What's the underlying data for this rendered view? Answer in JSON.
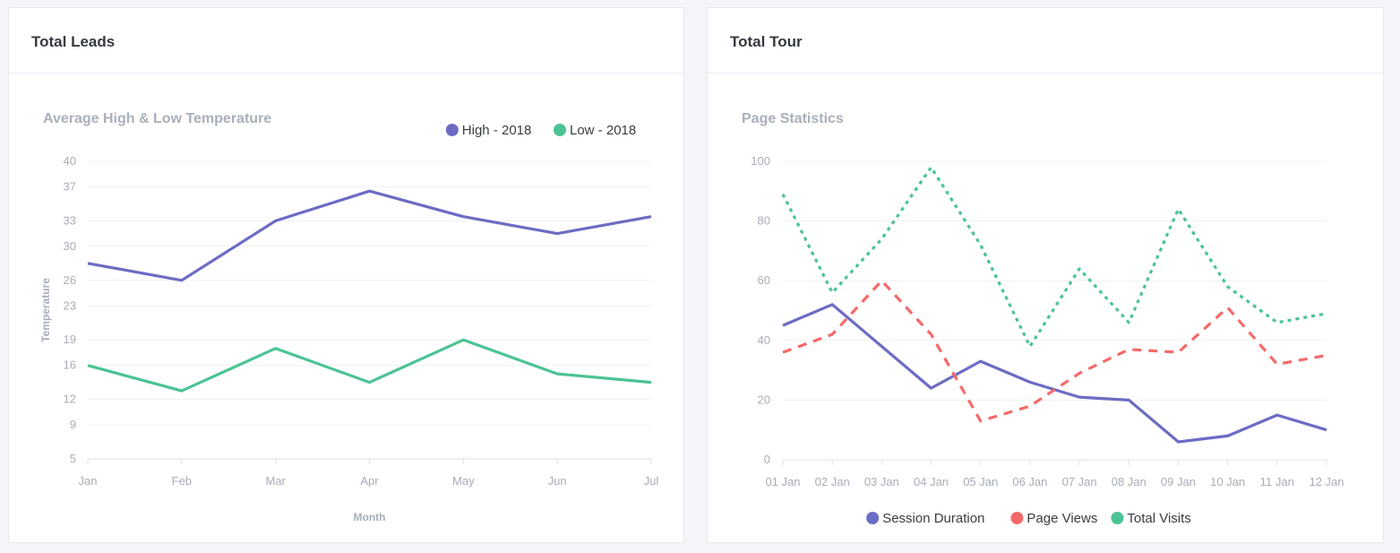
{
  "cards": [
    {
      "title": "Total Leads"
    },
    {
      "title": "Total Tour"
    }
  ],
  "chart_data": [
    {
      "type": "line",
      "title": "Average High & Low Temperature",
      "xlabel": "Month",
      "ylabel": "Temperature",
      "categories": [
        "Jan",
        "Feb",
        "Mar",
        "Apr",
        "May",
        "Jun",
        "Jul"
      ],
      "ylim": [
        5,
        40
      ],
      "yticks": [
        "5",
        "9",
        "12",
        "16",
        "19",
        "23",
        "26",
        "30",
        "33",
        "37",
        "40"
      ],
      "grid": true,
      "legend_position": "top-right",
      "series": [
        {
          "name": "High - 2018",
          "values": [
            28,
            26,
            33,
            36.5,
            33.5,
            31.5,
            33.5
          ],
          "color": "#6c6cc4",
          "dash": "solid"
        },
        {
          "name": "Low - 2018",
          "values": [
            16,
            13,
            18,
            14,
            19,
            15,
            14
          ],
          "color": "#4cc394",
          "dash": "solid"
        }
      ]
    },
    {
      "type": "line",
      "title": "Page Statistics",
      "xlabel": "",
      "ylabel": "",
      "categories": [
        "01 Jan",
        "02 Jan",
        "03 Jan",
        "04 Jan",
        "05 Jan",
        "06 Jan",
        "07 Jan",
        "08 Jan",
        "09 Jan",
        "10 Jan",
        "11 Jan",
        "12 Jan"
      ],
      "ylim": [
        0,
        100
      ],
      "yticks": [
        "0",
        "20",
        "40",
        "60",
        "80",
        "100"
      ],
      "grid": true,
      "legend_position": "bottom-center",
      "series": [
        {
          "name": "Session Duration",
          "values": [
            45,
            52,
            38,
            24,
            33,
            26,
            21,
            20,
            6,
            8,
            15,
            10
          ],
          "color": "#6c6cc4",
          "dash": "solid"
        },
        {
          "name": "Page Views",
          "values": [
            36,
            42,
            60,
            42,
            13,
            18,
            29,
            37,
            36,
            51,
            32,
            35
          ],
          "color": "#f46a6a",
          "dash": "dashed"
        },
        {
          "name": "Total Visits",
          "values": [
            89,
            56,
            74,
            98,
            72,
            38,
            64,
            46,
            84,
            58,
            46,
            49
          ],
          "color": "#4cc394",
          "dash": "dotted"
        }
      ]
    }
  ]
}
